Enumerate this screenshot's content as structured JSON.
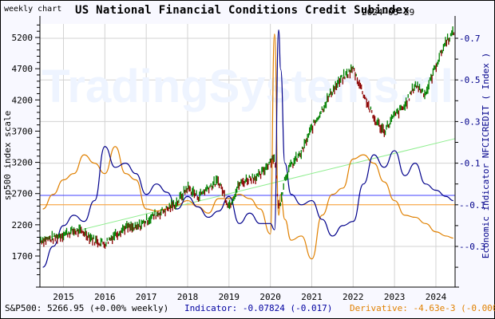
{
  "header": {
    "left_label": "weekly chart",
    "title": "US National Financial Conditions Credit Subindex",
    "date": "2024-05-29"
  },
  "watermark": "TradingSystems.nl",
  "axes": {
    "left_label": "sp500 index scale",
    "right_label": "Economic indicator NFCICREDIT ( Index )",
    "left_ticks": [
      "5200",
      "4700",
      "4200",
      "3700",
      "3200",
      "2700",
      "2200",
      "1700"
    ],
    "right_ticks": [
      "0.7",
      "0.5",
      "0.3",
      "0.1",
      "-0.1",
      "-0.3"
    ],
    "x_ticks": [
      "2015",
      "2016",
      "2017",
      "2018",
      "2019",
      "2020",
      "2021",
      "2022",
      "2023",
      "2024"
    ]
  },
  "footer": {
    "sp500": "S&P500: 5266.95 (+0.00% weekly)",
    "indicator": "Indicator: -0.07824 (-0.017)",
    "derivative": "Derivative: -4.63e-3 (-0.000)"
  },
  "colors": {
    "sp500_up": "#008000",
    "sp500_down": "#8b0000",
    "indicator": "#00008b",
    "derivative": "#e08000",
    "trend": "#90ee90",
    "indicator_ref": "#4040ff",
    "derivative_ref": "#ffa030",
    "grid": "#d3d3d3",
    "watermark": "#eef4ff"
  },
  "chart_data": {
    "type": "line",
    "title": "US National Financial Conditions Credit Subindex",
    "subtitle": "weekly chart 2024-05-29",
    "xlabel": "",
    "ylabel_left": "sp500 index scale",
    "ylabel_right": "Economic indicator NFCICREDIT ( Index )",
    "ylim_left": [
      1400,
      5400
    ],
    "ylim_right": [
      -0.4,
      0.75
    ],
    "grid": true,
    "x": [
      2014.5,
      2014.75,
      2015.0,
      2015.25,
      2015.5,
      2015.75,
      2016.0,
      2016.25,
      2016.5,
      2016.75,
      2017.0,
      2017.25,
      2017.5,
      2017.75,
      2018.0,
      2018.25,
      2018.5,
      2018.75,
      2019.0,
      2019.25,
      2019.5,
      2019.75,
      2020.0,
      2020.1,
      2020.2,
      2020.25,
      2020.35,
      2020.5,
      2020.75,
      2021.0,
      2021.25,
      2021.5,
      2021.75,
      2022.0,
      2022.25,
      2022.5,
      2022.75,
      2023.0,
      2023.25,
      2023.5,
      2023.75,
      2024.0,
      2024.25,
      2024.42
    ],
    "series": [
      {
        "name": "S&P500",
        "axis": "left",
        "values": [
          1960,
          1980,
          2050,
          2100,
          2080,
          1950,
          1900,
          2050,
          2160,
          2140,
          2270,
          2370,
          2450,
          2560,
          2800,
          2650,
          2800,
          2900,
          2500,
          2850,
          2950,
          2980,
          3230,
          3300,
          2450,
          2600,
          2950,
          3150,
          3350,
          3750,
          4050,
          4350,
          4550,
          4700,
          4300,
          3900,
          3700,
          3950,
          4100,
          4450,
          4300,
          4750,
          5150,
          5267
        ]
      },
      {
        "name": "Indicator NFCICREDIT",
        "axis": "right",
        "values": [
          -0.4,
          -0.3,
          -0.2,
          -0.15,
          -0.18,
          -0.08,
          0.18,
          0.08,
          0.1,
          0.05,
          -0.05,
          0.0,
          -0.04,
          -0.12,
          -0.06,
          -0.11,
          -0.16,
          -0.13,
          -0.06,
          -0.19,
          -0.14,
          -0.19,
          -0.19,
          -0.22,
          0.74,
          0.55,
          0.1,
          -0.05,
          -0.1,
          -0.08,
          -0.17,
          -0.25,
          -0.2,
          -0.18,
          0.0,
          0.14,
          0.08,
          0.16,
          0.04,
          0.1,
          0.0,
          -0.03,
          -0.06,
          -0.08
        ]
      },
      {
        "name": "Derivative",
        "axis": "right",
        "values": [
          -0.12,
          -0.05,
          0.02,
          0.05,
          0.14,
          0.1,
          0.05,
          0.18,
          0.05,
          0.02,
          -0.12,
          -0.13,
          -0.12,
          -0.1,
          -0.08,
          -0.11,
          -0.14,
          -0.07,
          -0.07,
          -0.05,
          -0.07,
          -0.12,
          -0.24,
          0.72,
          -0.15,
          -0.05,
          -0.17,
          -0.27,
          -0.25,
          -0.36,
          -0.15,
          -0.05,
          -0.02,
          0.12,
          0.14,
          0.1,
          0.01,
          -0.08,
          -0.15,
          -0.16,
          -0.19,
          -0.23,
          -0.25,
          -0.26
        ]
      },
      {
        "name": "Trend",
        "axis": "left",
        "values_endpoints": [
          1960,
          3580
        ]
      }
    ],
    "reference_lines": [
      {
        "name": "indicator-ref",
        "axis": "right",
        "value": -0.055
      },
      {
        "name": "derivative-ref",
        "axis": "right",
        "value": -0.1
      }
    ]
  }
}
